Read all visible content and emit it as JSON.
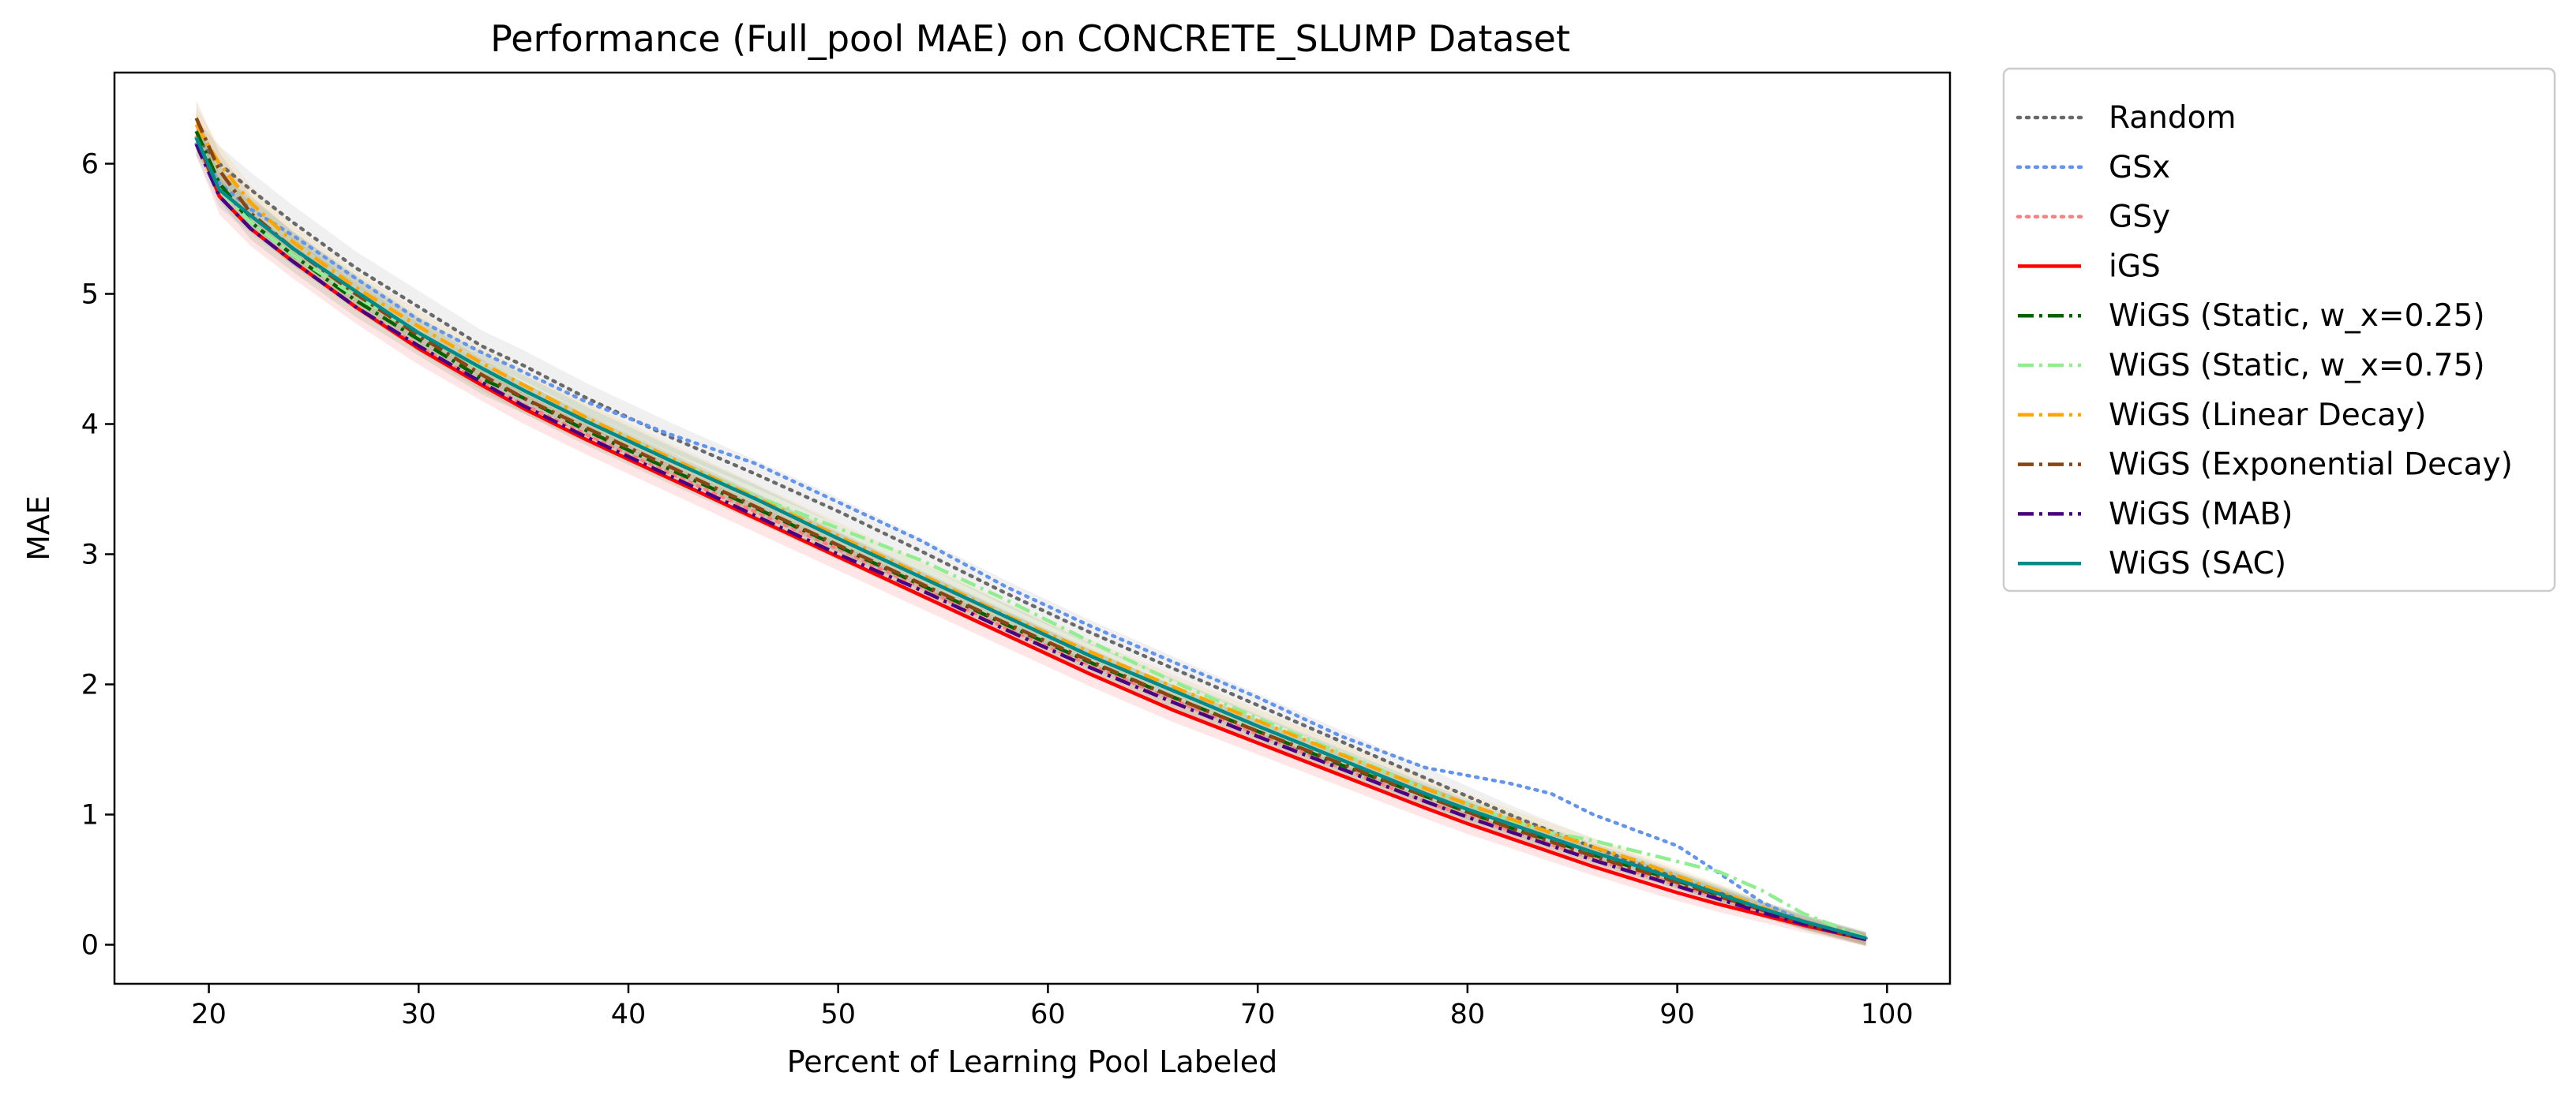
{
  "chart_data": {
    "type": "line",
    "title": "Performance (Full_pool MAE) on CONCRETE_SLUMP Dataset",
    "xlabel": "Percent of Learning Pool Labeled",
    "ylabel": "MAE",
    "xlim": [
      15.5,
      103
    ],
    "ylim": [
      -0.3,
      6.7
    ],
    "xticks": [
      20,
      30,
      40,
      50,
      60,
      70,
      80,
      90,
      100
    ],
    "yticks": [
      0,
      1,
      2,
      3,
      4,
      5,
      6
    ],
    "grid": false,
    "legend_position": "outside-right-top",
    "x": [
      19.4,
      20.5,
      22,
      24,
      27,
      30,
      33,
      35,
      38,
      42,
      46,
      50,
      54,
      58,
      62,
      66,
      70,
      74,
      78,
      80,
      82,
      84,
      86,
      88,
      90,
      92,
      94,
      96,
      99
    ],
    "series": [
      {
        "name": "Random",
        "color": "#696969",
        "style": "dotted",
        "band": true,
        "values": [
          6.2,
          6.0,
          5.8,
          5.55,
          5.2,
          4.9,
          4.6,
          4.45,
          4.2,
          3.9,
          3.62,
          3.33,
          3.02,
          2.7,
          2.4,
          2.12,
          1.84,
          1.56,
          1.28,
          1.14,
          1.0,
          0.87,
          0.75,
          0.63,
          0.51,
          0.4,
          0.28,
          0.18,
          0.05
        ]
      },
      {
        "name": "GSx",
        "color": "#6495ED",
        "style": "dotted",
        "band": false,
        "values": [
          6.15,
          5.85,
          5.65,
          5.45,
          5.12,
          4.8,
          4.55,
          4.4,
          4.17,
          3.92,
          3.7,
          3.4,
          3.1,
          2.75,
          2.45,
          2.17,
          1.9,
          1.6,
          1.36,
          1.3,
          1.24,
          1.16,
          1.0,
          0.88,
          0.76,
          0.55,
          0.33,
          0.18,
          0.05
        ]
      },
      {
        "name": "GSy",
        "color": "#FF7F7F",
        "style": "dotted",
        "band": false,
        "values": [
          6.2,
          5.75,
          5.5,
          5.25,
          4.9,
          4.6,
          4.32,
          4.15,
          3.92,
          3.62,
          3.33,
          3.04,
          2.74,
          2.43,
          2.15,
          1.88,
          1.62,
          1.36,
          1.1,
          0.99,
          0.88,
          0.77,
          0.66,
          0.56,
          0.46,
          0.36,
          0.26,
          0.17,
          0.05
        ]
      },
      {
        "name": "iGS",
        "color": "#FF0000",
        "style": "solid",
        "band": true,
        "values": [
          6.2,
          5.75,
          5.5,
          5.25,
          4.9,
          4.58,
          4.3,
          4.12,
          3.88,
          3.58,
          3.28,
          2.98,
          2.68,
          2.38,
          2.08,
          1.8,
          1.55,
          1.3,
          1.05,
          0.93,
          0.82,
          0.71,
          0.6,
          0.5,
          0.4,
          0.31,
          0.23,
          0.15,
          0.04
        ]
      },
      {
        "name": "WiGS (Static, w_x=0.25)",
        "color": "#006400",
        "style": "dashdot",
        "band": true,
        "values": [
          6.25,
          5.85,
          5.55,
          5.3,
          4.95,
          4.65,
          4.35,
          4.2,
          3.95,
          3.65,
          3.36,
          3.06,
          2.76,
          2.46,
          2.17,
          1.9,
          1.64,
          1.38,
          1.14,
          1.02,
          0.9,
          0.8,
          0.69,
          0.59,
          0.49,
          0.38,
          0.27,
          0.17,
          0.04
        ]
      },
      {
        "name": "WiGS (Static, w_x=0.75)",
        "color": "#90EE90",
        "style": "dashdot",
        "band": false,
        "values": [
          6.2,
          5.8,
          5.55,
          5.3,
          4.98,
          4.7,
          4.42,
          4.26,
          4.02,
          3.73,
          3.45,
          3.2,
          2.95,
          2.65,
          2.33,
          2.02,
          1.74,
          1.47,
          1.2,
          1.08,
          0.96,
          0.86,
          0.8,
          0.72,
          0.64,
          0.56,
          0.42,
          0.24,
          0.05
        ]
      },
      {
        "name": "WiGS (Linear Decay)",
        "color": "#FFA500",
        "style": "dashdot",
        "band": true,
        "values": [
          6.3,
          6.0,
          5.7,
          5.4,
          5.05,
          4.75,
          4.47,
          4.3,
          4.05,
          3.74,
          3.44,
          3.14,
          2.84,
          2.53,
          2.25,
          1.98,
          1.72,
          1.46,
          1.2,
          1.08,
          0.97,
          0.86,
          0.75,
          0.65,
          0.53,
          0.41,
          0.29,
          0.18,
          0.04
        ]
      },
      {
        "name": "WiGS (Exponential Decay)",
        "color": "#8B4513",
        "style": "dashdot",
        "band": true,
        "values": [
          6.35,
          5.95,
          5.62,
          5.35,
          5.0,
          4.68,
          4.38,
          4.2,
          3.97,
          3.67,
          3.37,
          3.07,
          2.77,
          2.47,
          2.18,
          1.9,
          1.64,
          1.39,
          1.14,
          1.02,
          0.9,
          0.79,
          0.68,
          0.58,
          0.48,
          0.37,
          0.27,
          0.17,
          0.04
        ]
      },
      {
        "name": "WiGS (MAB)",
        "color": "#4B0082",
        "style": "dashdot",
        "band": false,
        "values": [
          6.15,
          5.75,
          5.5,
          5.25,
          4.9,
          4.6,
          4.32,
          4.14,
          3.9,
          3.6,
          3.3,
          3.0,
          2.72,
          2.42,
          2.13,
          1.86,
          1.6,
          1.35,
          1.1,
          0.98,
          0.87,
          0.76,
          0.65,
          0.55,
          0.45,
          0.35,
          0.25,
          0.16,
          0.04
        ]
      },
      {
        "name": "WiGS (SAC)",
        "color": "#008B8B",
        "style": "solid",
        "band": true,
        "values": [
          6.2,
          5.8,
          5.6,
          5.35,
          5.02,
          4.7,
          4.43,
          4.26,
          4.02,
          3.72,
          3.43,
          3.12,
          2.82,
          2.52,
          2.22,
          1.95,
          1.68,
          1.42,
          1.16,
          1.04,
          0.93,
          0.82,
          0.71,
          0.61,
          0.5,
          0.39,
          0.28,
          0.18,
          0.05
        ]
      }
    ]
  }
}
